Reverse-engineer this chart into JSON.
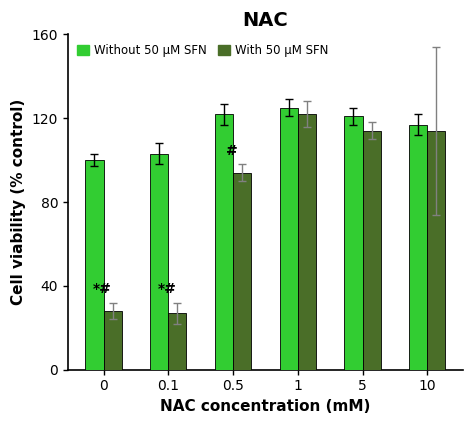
{
  "title": "NAC",
  "xlabel": "NAC concentration (mM)",
  "ylabel": "Cell viability (% control)",
  "categories": [
    "0",
    "0.1",
    "0.5",
    "1",
    "5",
    "10"
  ],
  "without_sfn": [
    100,
    103,
    122,
    125,
    121,
    117
  ],
  "with_sfn": [
    28,
    27,
    94,
    122,
    114,
    114
  ],
  "without_sfn_err": [
    3,
    5,
    5,
    4,
    4,
    5
  ],
  "with_sfn_err": [
    4,
    5,
    4,
    6,
    4,
    40
  ],
  "color_without": "#32CD32",
  "color_with": "#4a6e28",
  "ylim": [
    0,
    160
  ],
  "yticks": [
    0,
    40,
    80,
    120,
    160
  ],
  "legend_labels": [
    "Without 50 μM SFN",
    "With 50 μM SFN"
  ],
  "bar_width": 0.28
}
